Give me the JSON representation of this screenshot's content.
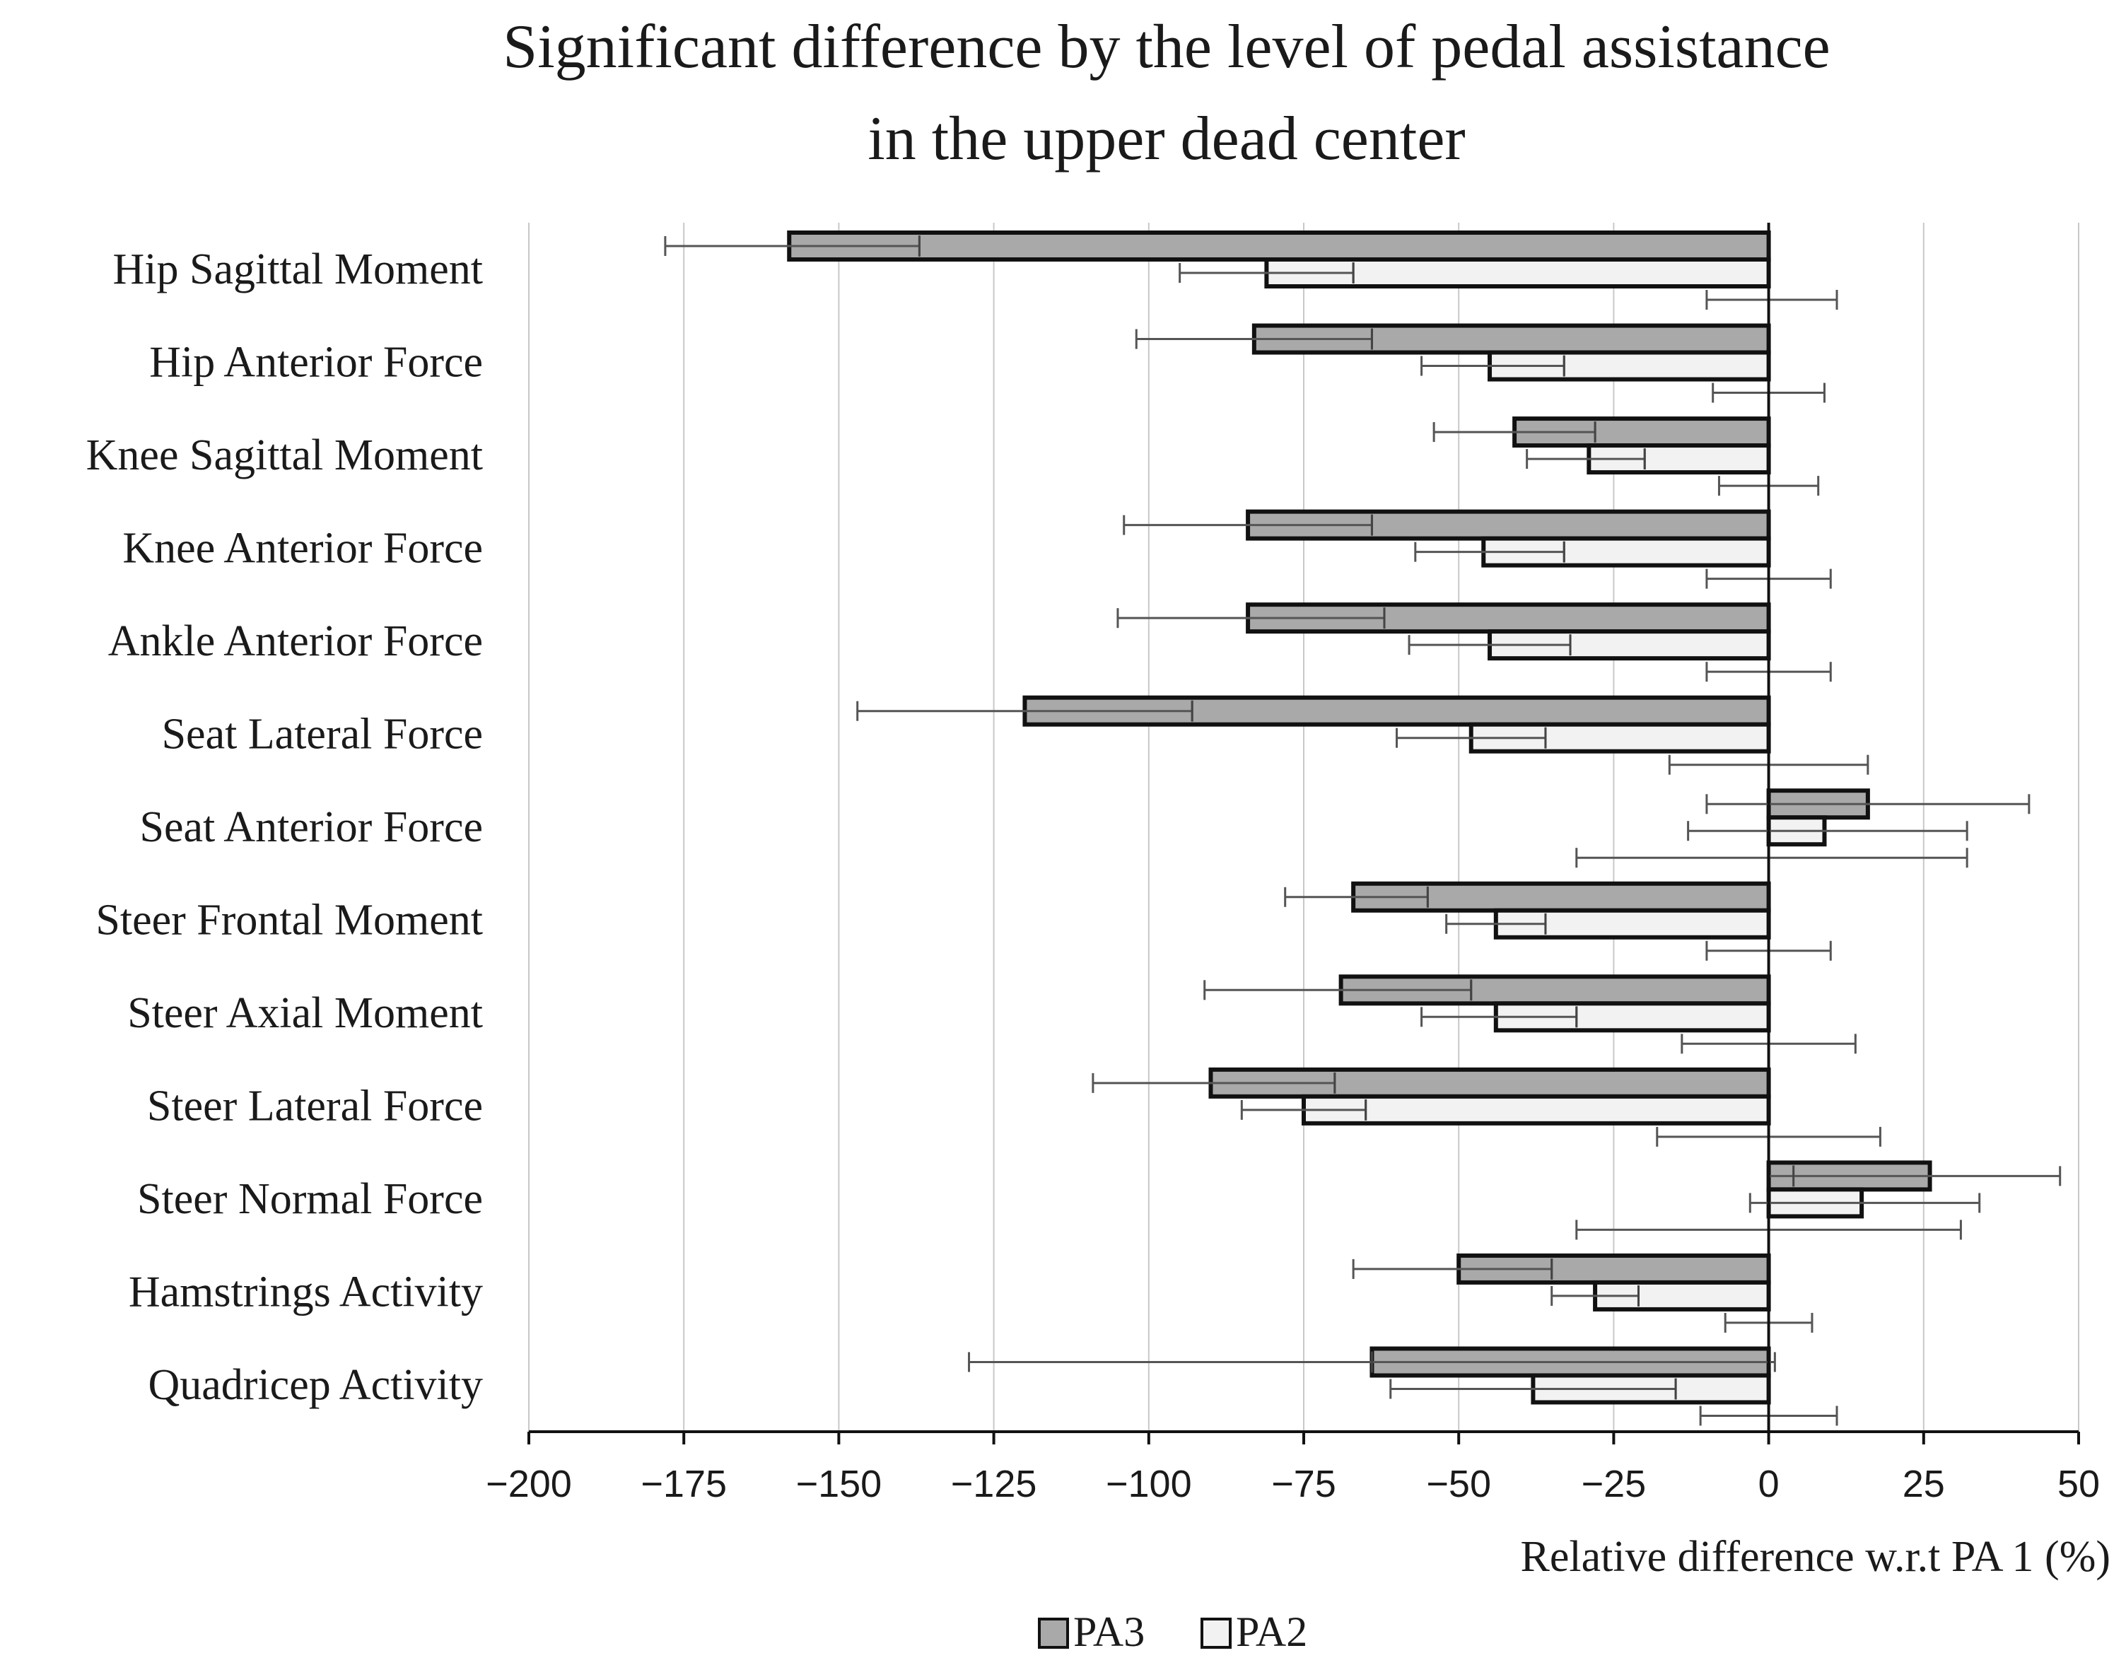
{
  "chart_data": {
    "type": "bar",
    "orientation": "horizontal",
    "title": [
      "Significant difference by the level of pedal assistance",
      "in the upper dead center"
    ],
    "xlabel": "Relative difference w.r.t PA 1 (%)",
    "ylabel": "",
    "xlim": [
      -200,
      50
    ],
    "xticks": [
      -200,
      -175,
      -150,
      -125,
      -100,
      -75,
      -50,
      -25,
      0,
      25,
      50
    ],
    "xtick_labels": [
      "−200",
      "−175",
      "−150",
      "−125",
      "−100",
      "−75",
      "−50",
      "−25",
      "0",
      "25",
      "50"
    ],
    "grid": "vertical",
    "categories": [
      "Hip Sagittal Moment",
      "Hip Anterior Force",
      "Knee Sagittal Moment",
      "Knee Anterior Force",
      "Ankle Anterior Force",
      "Seat Lateral Force",
      "Seat Anterior Force",
      "Steer Frontal Moment",
      "Steer Axial Moment",
      "Steer Lateral Force",
      "Steer Normal Force",
      "Hamstrings Activity",
      "Quadricep Activity"
    ],
    "series": [
      {
        "name": "PA3",
        "color": "#a9a9a9",
        "values": [
          -158,
          -83,
          -41,
          -84,
          -84,
          -120,
          16,
          -67,
          -69,
          -90,
          26,
          -50,
          -64
        ],
        "inner_marker": [
          -137,
          -64,
          -28,
          -64,
          -62,
          -93,
          0,
          -55,
          -48,
          -70,
          4,
          -35,
          -64
        ],
        "error_low": [
          -178,
          -102,
          -54,
          -104,
          -105,
          -147,
          -10,
          -78,
          -91,
          -109,
          0,
          -67,
          -129
        ],
        "error_high": [
          -137,
          -64,
          -28,
          -64,
          -62,
          -93,
          42,
          -55,
          -48,
          -70,
          47,
          -35,
          1
        ]
      },
      {
        "name": "PA2",
        "color": "#f2f2f2",
        "values": [
          -81,
          -45,
          -29,
          -46,
          -45,
          -48,
          9,
          -44,
          -44,
          -75,
          15,
          -28,
          -38
        ],
        "inner_marker": [
          -67,
          -33,
          -20,
          -33,
          -32,
          -36,
          0,
          -36,
          -31,
          -65,
          0,
          -21,
          -15
        ],
        "error_low": [
          -95,
          -56,
          -39,
          -57,
          -58,
          -60,
          -13,
          -52,
          -56,
          -85,
          -3,
          -35,
          -61
        ],
        "error_high": [
          -67,
          -33,
          -20,
          -33,
          -32,
          -36,
          32,
          -36,
          -31,
          -65,
          34,
          -21,
          -15
        ]
      },
      {
        "name": "PA1",
        "color": "#ffffff",
        "show_in_legend": false,
        "values": [
          0,
          0,
          0,
          0,
          0,
          0,
          0,
          0,
          0,
          0,
          0,
          0,
          0
        ],
        "error_low": [
          -10,
          -9,
          -8,
          -10,
          -10,
          -16,
          -31,
          -10,
          -14,
          -18,
          -31,
          -7,
          -11
        ],
        "error_high": [
          11,
          9,
          8,
          10,
          10,
          16,
          32,
          10,
          14,
          18,
          31,
          7,
          11
        ]
      }
    ],
    "legend": {
      "placement": "bottom-center",
      "entries": [
        "PA3",
        "PA2"
      ]
    }
  }
}
